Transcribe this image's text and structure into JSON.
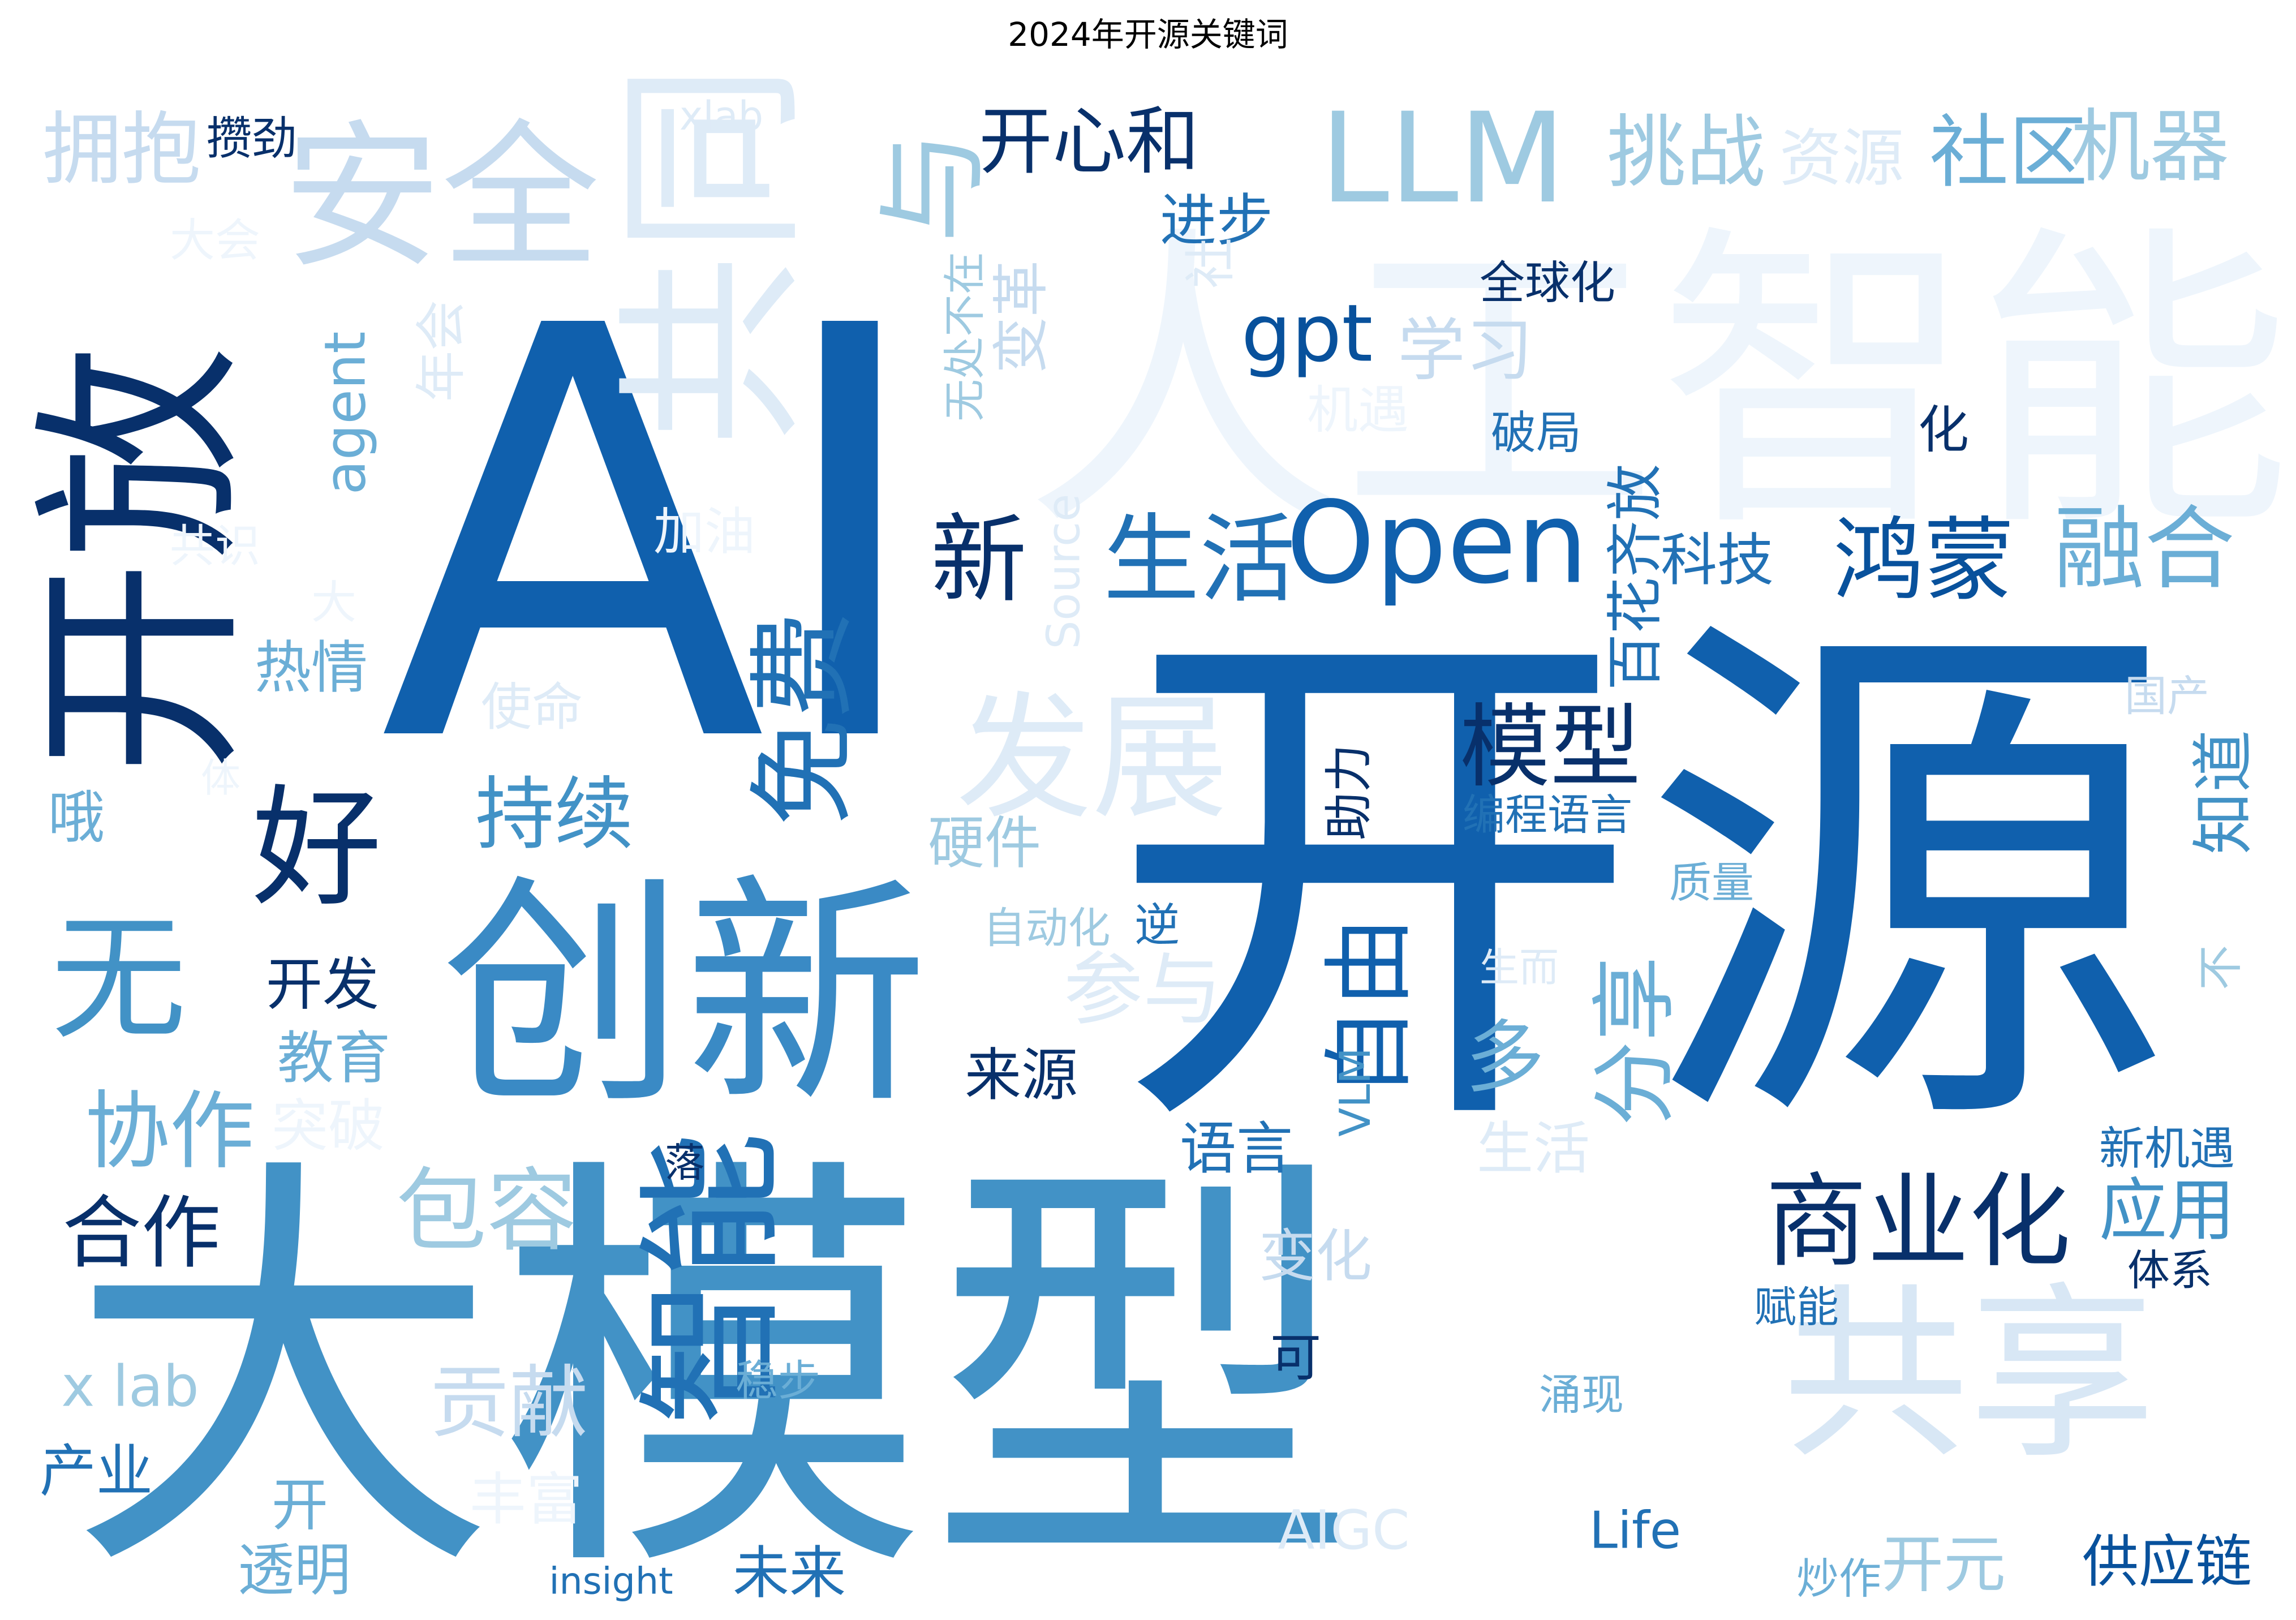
{
  "chart_data": {
    "type": "wordcloud",
    "title": "2024年开源关键词",
    "palette": [
      "#08306b",
      "#08519c",
      "#1060ad",
      "#2171b5",
      "#4292c6",
      "#6baed6",
      "#9ecae1",
      "#c6dbef",
      "#deebf7",
      "#eef5fc"
    ],
    "words": [
      {
        "text": "开源",
        "weight": 100,
        "color": "#1060ad",
        "orientation": "horizontal"
      },
      {
        "text": "AI",
        "weight": 96,
        "color": "#1060ad",
        "orientation": "horizontal"
      },
      {
        "text": "大模型",
        "weight": 90,
        "color": "#4292c6",
        "orientation": "horizontal"
      },
      {
        "text": "人工智能",
        "weight": 80,
        "color": "#eef5fc",
        "orientation": "horizontal"
      },
      {
        "text": "创新",
        "weight": 62,
        "color": "#3a8ac5",
        "orientation": "horizontal"
      },
      {
        "text": "开放",
        "weight": 58,
        "color": "#08306b",
        "orientation": "vertical"
      },
      {
        "text": "共享",
        "weight": 52,
        "color": "#d8e7f5",
        "orientation": "horizontal"
      },
      {
        "text": "共同",
        "weight": 50,
        "color": "#deebf7",
        "orientation": "vertical"
      },
      {
        "text": "安全",
        "weight": 44,
        "color": "#c6dbef",
        "orientation": "horizontal"
      },
      {
        "text": "智能",
        "weight": 44,
        "color": "#2171b5",
        "orientation": "vertical"
      },
      {
        "text": "发展",
        "weight": 38,
        "color": "#deebf7",
        "orientation": "horizontal"
      },
      {
        "text": "免费",
        "weight": 36,
        "color": "#2171b5",
        "orientation": "vertical"
      },
      {
        "text": "与",
        "weight": 34,
        "color": "#9ecae1",
        "orientation": "vertical"
      },
      {
        "text": "LLM",
        "weight": 33,
        "color": "#9ecae1",
        "orientation": "horizontal"
      },
      {
        "text": "无",
        "weight": 33,
        "color": "#4292c6",
        "orientation": "horizontal"
      },
      {
        "text": "Open",
        "weight": 30,
        "color": "#1060ad",
        "orientation": "horizontal"
      },
      {
        "text": "好",
        "weight": 30,
        "color": "#08306b",
        "orientation": "horizontal"
      },
      {
        "text": "商业化",
        "weight": 26,
        "color": "#08306b",
        "orientation": "horizontal"
      },
      {
        "text": "生活",
        "weight": 25,
        "color": "#2171b5",
        "orientation": "horizontal"
      },
      {
        "text": "新",
        "weight": 24,
        "color": "#08306b",
        "orientation": "horizontal"
      },
      {
        "text": "协作",
        "weight": 24,
        "color": "#6baed6",
        "orientation": "horizontal"
      },
      {
        "text": "鸿蒙",
        "weight": 24,
        "color": "#08519c",
        "orientation": "horizontal"
      },
      {
        "text": "融合",
        "weight": 24,
        "color": "#6baed6",
        "orientation": "horizontal"
      },
      {
        "text": "模型",
        "weight": 24,
        "color": "#08306b",
        "orientation": "horizontal"
      },
      {
        "text": "包容",
        "weight": 24,
        "color": "#9ecae1",
        "orientation": "horizontal"
      },
      {
        "text": "自由",
        "weight": 24,
        "color": "#1060ad",
        "orientation": "vertical"
      },
      {
        "text": "持续",
        "weight": 22,
        "color": "#4292c6",
        "orientation": "horizontal"
      },
      {
        "text": "合作",
        "weight": 22,
        "color": "#08306b",
        "orientation": "horizontal"
      },
      {
        "text": "社区",
        "weight": 22,
        "color": "#6baed6",
        "orientation": "horizontal"
      },
      {
        "text": "机器",
        "weight": 22,
        "color": "#9ecae1",
        "orientation": "horizontal"
      },
      {
        "text": "挑战",
        "weight": 22,
        "color": "#9ecae1",
        "orientation": "horizontal"
      },
      {
        "text": "拥抱",
        "weight": 22,
        "color": "#c6dbef",
        "orientation": "horizontal"
      },
      {
        "text": "开心和",
        "weight": 22,
        "color": "#08306b",
        "orientation": "horizontal"
      },
      {
        "text": "分享",
        "weight": 22,
        "color": "#6baed6",
        "orientation": "vertical"
      },
      {
        "text": "参与",
        "weight": 20,
        "color": "#deebf7",
        "orientation": "horizontal"
      },
      {
        "text": "贡献",
        "weight": 20,
        "color": "#c6dbef",
        "orientation": "horizontal"
      },
      {
        "text": "多",
        "weight": 20,
        "color": "#6baed6",
        "orientation": "horizontal"
      },
      {
        "text": "应用",
        "weight": 20,
        "color": "#4292c6",
        "orientation": "horizontal"
      },
      {
        "text": "gpt",
        "weight": 20,
        "color": "#08519c",
        "orientation": "horizontal"
      },
      {
        "text": "资源",
        "weight": 18,
        "color": "#deebf7",
        "orientation": "horizontal"
      },
      {
        "text": "学习",
        "weight": 18,
        "color": "#c6dbef",
        "orientation": "horizontal"
      },
      {
        "text": "科技",
        "weight": 18,
        "color": "#2171b5",
        "orientation": "horizontal"
      },
      {
        "text": "百花齐放",
        "weight": 18,
        "color": "#2171b5",
        "orientation": "vertical"
      },
      {
        "text": "知道",
        "weight": 18,
        "color": "#4292c6",
        "orientation": "vertical"
      },
      {
        "text": "进步",
        "weight": 16,
        "color": "#2171b5",
        "orientation": "horizontal"
      },
      {
        "text": "变革",
        "weight": 16,
        "color": "#c6dbef",
        "orientation": "vertical"
      },
      {
        "text": "agent",
        "weight": 16,
        "color": "#6baed6",
        "orientation": "vertical"
      },
      {
        "text": "Source",
        "weight": 14,
        "color": "#deebf7",
        "orientation": "vertical"
      },
      {
        "text": "来源",
        "weight": 16,
        "color": "#08306b",
        "orientation": "horizontal"
      },
      {
        "text": "未来",
        "weight": 16,
        "color": "#2171b5",
        "orientation": "horizontal"
      },
      {
        "text": "供应链",
        "weight": 16,
        "color": "#08519c",
        "orientation": "horizontal"
      },
      {
        "text": "开元",
        "weight": 16,
        "color": "#9ecae1",
        "orientation": "horizontal"
      },
      {
        "text": "语言",
        "weight": 15,
        "color": "#2171b5",
        "orientation": "horizontal"
      },
      {
        "text": "开发",
        "weight": 15,
        "color": "#08306b",
        "orientation": "horizontal"
      },
      {
        "text": "教育",
        "weight": 15,
        "color": "#6baed6",
        "orientation": "horizontal"
      },
      {
        "text": "硬件",
        "weight": 15,
        "color": "#9ecae1",
        "orientation": "horizontal"
      },
      {
        "text": "变化",
        "weight": 15,
        "color": "#c6dbef",
        "orientation": "horizontal"
      },
      {
        "text": "生活",
        "weight": 15,
        "color": "#deebf7",
        "orientation": "horizontal"
      },
      {
        "text": "热情",
        "weight": 14,
        "color": "#6baed6",
        "orientation": "horizontal"
      },
      {
        "text": "透明",
        "weight": 14,
        "color": "#6baed6",
        "orientation": "horizontal"
      },
      {
        "text": "产业",
        "weight": 14,
        "color": "#2171b5",
        "orientation": "horizontal"
      },
      {
        "text": "x lab",
        "weight": 14,
        "color": "#9ecae1",
        "orientation": "horizontal"
      },
      {
        "text": "突破",
        "weight": 14,
        "color": "#eef5fc",
        "orientation": "horizontal"
      },
      {
        "text": "丰富",
        "weight": 14,
        "color": "#eef5fc",
        "orientation": "horizontal"
      },
      {
        "text": "使命",
        "weight": 12,
        "color": "#deebf7",
        "orientation": "horizontal"
      },
      {
        "text": "加油",
        "weight": 12,
        "color": "#eef5fc",
        "orientation": "horizontal"
      },
      {
        "text": "机遇",
        "weight": 12,
        "color": "#eef5fc",
        "orientation": "horizontal"
      },
      {
        "text": "大会",
        "weight": 12,
        "color": "#eef5fc",
        "orientation": "horizontal"
      },
      {
        "text": "共识",
        "weight": 12,
        "color": "#eef5fc",
        "orientation": "horizontal"
      },
      {
        "text": "大",
        "weight": 12,
        "color": "#eef5fc",
        "orientation": "horizontal"
      },
      {
        "text": "哦",
        "weight": 12,
        "color": "#6baed6",
        "orientation": "horizontal"
      },
      {
        "text": "体",
        "weight": 8,
        "color": "#eef5fc",
        "orientation": "horizontal"
      },
      {
        "text": "年会",
        "weight": 12,
        "color": "#deebf7",
        "orientation": "vertical"
      },
      {
        "text": "社",
        "weight": 12,
        "color": "#deebf7",
        "orientation": "vertical"
      },
      {
        "text": "开",
        "weight": 12,
        "color": "#6baed6",
        "orientation": "horizontal"
      },
      {
        "text": "攒劲",
        "weight": 10,
        "color": "#08306b",
        "orientation": "horizontal"
      },
      {
        "text": "xlab",
        "weight": 9,
        "color": "#deebf7",
        "orientation": "horizontal"
      },
      {
        "text": "全球化",
        "weight": 10,
        "color": "#08306b",
        "orientation": "horizontal"
      },
      {
        "text": "无处不在",
        "weight": 10,
        "color": "#9ecae1",
        "orientation": "vertical"
      },
      {
        "text": "破局",
        "weight": 10,
        "color": "#2171b5",
        "orientation": "horizontal"
      },
      {
        "text": "化",
        "weight": 10,
        "color": "#08306b",
        "orientation": "horizontal"
      },
      {
        "text": "助力",
        "weight": 11,
        "color": "#08306b",
        "orientation": "vertical"
      },
      {
        "text": "编程语言",
        "weight": 10,
        "color": "#2171b5",
        "orientation": "horizontal"
      },
      {
        "text": "质量",
        "weight": 10,
        "color": "#6baed6",
        "orientation": "horizontal"
      },
      {
        "text": "国产",
        "weight": 10,
        "color": "#c6dbef",
        "orientation": "horizontal"
      },
      {
        "text": "自动化",
        "weight": 10,
        "color": "#9ecae1",
        "orientation": "horizontal"
      },
      {
        "text": "逆",
        "weight": 10,
        "color": "#2171b5",
        "orientation": "horizontal"
      },
      {
        "text": "不",
        "weight": 10,
        "color": "#9ecae1",
        "orientation": "vertical"
      },
      {
        "text": "生而",
        "weight": 9,
        "color": "#deebf7",
        "orientation": "horizontal"
      },
      {
        "text": "VLM",
        "weight": 9,
        "color": "#4292c6",
        "orientation": "vertical"
      },
      {
        "text": "落",
        "weight": 9,
        "color": "#08306b",
        "orientation": "horizontal"
      },
      {
        "text": "新机遇",
        "weight": 10,
        "color": "#2171b5",
        "orientation": "horizontal"
      },
      {
        "text": "体系",
        "weight": 9,
        "color": "#08306b",
        "orientation": "horizontal"
      },
      {
        "text": "赋能",
        "weight": 9,
        "color": "#2171b5",
        "orientation": "horizontal"
      },
      {
        "text": "可",
        "weight": 10,
        "color": "#08306b",
        "orientation": "horizontal"
      },
      {
        "text": "稳步",
        "weight": 9,
        "color": "#6baed6",
        "orientation": "horizontal"
      },
      {
        "text": "涌现",
        "weight": 9,
        "color": "#6baed6",
        "orientation": "horizontal"
      },
      {
        "text": "AIGC",
        "weight": 10,
        "color": "#deebf7",
        "orientation": "horizontal"
      },
      {
        "text": "Life",
        "weight": 10,
        "color": "#2171b5",
        "orientation": "horizontal"
      },
      {
        "text": "insight",
        "weight": 8,
        "color": "#2171b5",
        "orientation": "horizontal"
      },
      {
        "text": "炒作",
        "weight": 9,
        "color": "#6baed6",
        "orientation": "horizontal"
      }
    ]
  }
}
